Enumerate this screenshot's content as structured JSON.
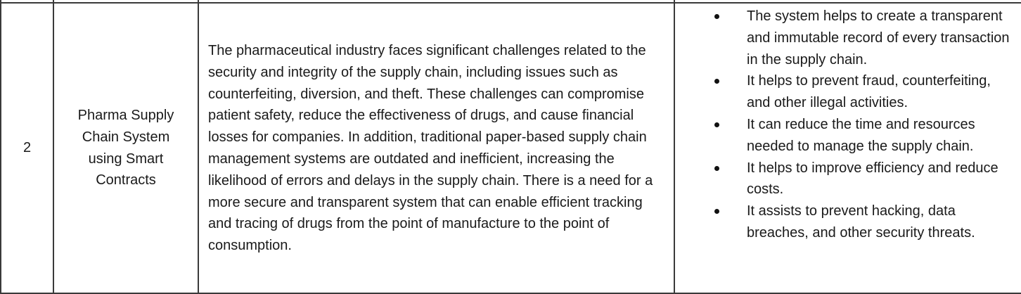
{
  "row": {
    "number": "2",
    "title": "Pharma Supply Chain System using Smart Contracts",
    "description": "The pharmaceutical industry faces significant challenges related to the security and integrity of the supply chain, including issues such as counterfeiting, diversion, and theft. These challenges can compromise patient safety, reduce the effectiveness of drugs, and cause financial losses for companies. In addition, traditional paper-based supply chain management systems are outdated and inefficient, increasing the likelihood of errors and delays in the supply chain. There is a need for a more secure and transparent system that can enable efficient tracking and tracing of drugs from the point of manufacture to the point of consumption.",
    "benefits": [
      "The system helps to create a transparent and immutable record of every transaction in the supply chain.",
      "It helps to prevent fraud, counterfeiting, and other illegal activities.",
      "It can reduce the time and resources needed to manage the supply chain.",
      "It helps to improve efficiency and reduce costs.",
      "It assists to prevent hacking, data breaches, and other security threats."
    ]
  }
}
